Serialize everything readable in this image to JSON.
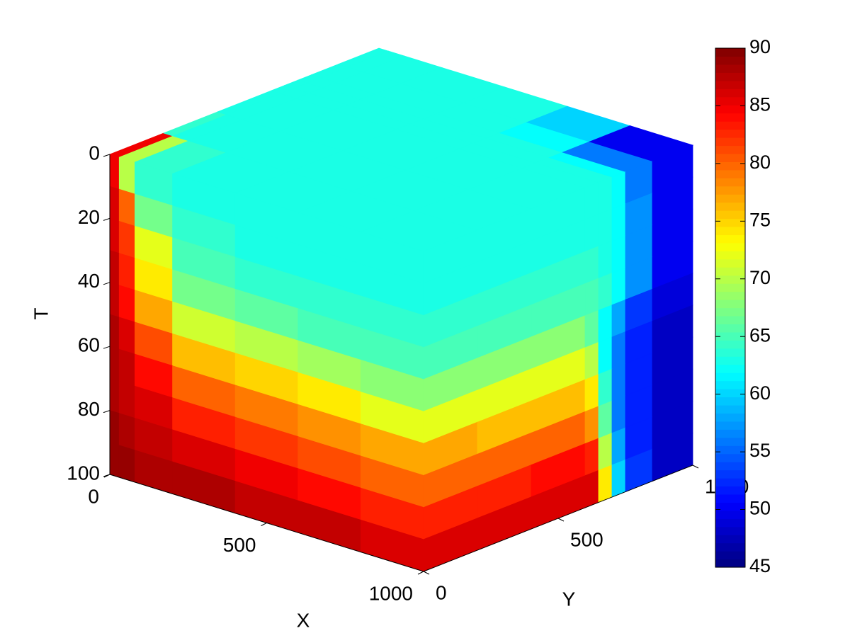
{
  "chart_data": {
    "type": "cube",
    "xlabel": "X",
    "ylabel": "Y",
    "tlabel": "T",
    "xlim": [
      0,
      1000
    ],
    "ylim": [
      0,
      1000
    ],
    "tlim": [
      0,
      100
    ],
    "tdir": "reverse",
    "xticks": [
      0,
      500,
      1000
    ],
    "yticks": [
      0,
      500,
      1000
    ],
    "tticks": [
      0,
      20,
      40,
      60,
      80,
      100
    ],
    "colormap": "jet",
    "clim": [
      45,
      90
    ],
    "cticks": [
      45,
      50,
      55,
      60,
      65,
      70,
      75,
      80,
      85,
      90
    ],
    "faces": [
      {
        "fixed_axis": "t",
        "fixed_value": 0,
        "row_axis": "x",
        "row_edges": [
          0,
          30,
          80,
          200,
          400,
          600,
          800,
          1000
        ],
        "col_axis": "y",
        "col_edges": [
          0,
          200,
          400,
          600,
          650,
          700,
          750,
          850,
          1000
        ],
        "values": [
          [
            85,
            64,
            63,
            63,
            63,
            63,
            63,
            63
          ],
          [
            70,
            63,
            63,
            63,
            63,
            63,
            63,
            63
          ],
          [
            64,
            63,
            63,
            63,
            63,
            63,
            63,
            63
          ],
          [
            63,
            63,
            63,
            63,
            63,
            63,
            63,
            63
          ],
          [
            63,
            63,
            63,
            63,
            63,
            63,
            63,
            63
          ],
          [
            63,
            63,
            63,
            63,
            63,
            63,
            62,
            60
          ],
          [
            63,
            63,
            63,
            63,
            63,
            62,
            56,
            50
          ]
        ]
      },
      {
        "fixed_axis": "y",
        "fixed_value": 0,
        "row_axis": "t",
        "row_edges": [
          0,
          10,
          20,
          30,
          40,
          50,
          60,
          70,
          80,
          90,
          100
        ],
        "col_axis": "x",
        "col_edges": [
          0,
          30,
          80,
          200,
          400,
          600,
          800,
          1000
        ],
        "values": [
          [
            85,
            70,
            64,
            63,
            63,
            63,
            63
          ],
          [
            86,
            80,
            67,
            64,
            63,
            63,
            63
          ],
          [
            86,
            82,
            72,
            65,
            64,
            64,
            64
          ],
          [
            87,
            83,
            74,
            67,
            66,
            65,
            65
          ],
          [
            87,
            84,
            77,
            71,
            70,
            69,
            68
          ],
          [
            88,
            86,
            81,
            76,
            75,
            74,
            72
          ],
          [
            88,
            87,
            84,
            80,
            79,
            78,
            77
          ],
          [
            88,
            87,
            86,
            83,
            82,
            81,
            80
          ],
          [
            89,
            88,
            87,
            86,
            85,
            84,
            83
          ],
          [
            89,
            89,
            88,
            88,
            87,
            87,
            86
          ]
        ]
      },
      {
        "fixed_axis": "x",
        "fixed_value": 1000,
        "row_axis": "t",
        "row_edges": [
          0,
          10,
          20,
          30,
          40,
          50,
          60,
          70,
          80,
          90,
          100
        ],
        "col_axis": "y",
        "col_edges": [
          0,
          200,
          400,
          600,
          650,
          700,
          750,
          850,
          1000
        ],
        "values": [
          [
            63,
            63,
            63,
            63,
            63,
            62,
            56,
            50
          ],
          [
            63,
            63,
            63,
            63,
            63,
            62,
            57,
            50
          ],
          [
            64,
            64,
            64,
            64,
            63,
            62,
            57,
            50
          ],
          [
            65,
            65,
            65,
            65,
            64,
            62,
            57,
            50
          ],
          [
            68,
            68,
            68,
            66,
            62,
            58,
            53,
            49
          ],
          [
            72,
            72,
            72,
            70,
            62,
            56,
            52,
            48
          ],
          [
            77,
            76,
            76,
            74,
            64,
            56,
            52,
            48
          ],
          [
            80,
            80,
            80,
            78,
            66,
            56,
            52,
            48
          ],
          [
            83,
            83,
            84,
            83,
            70,
            58,
            52,
            48
          ],
          [
            86,
            86,
            86,
            86,
            74,
            60,
            53,
            48
          ]
        ]
      }
    ]
  }
}
